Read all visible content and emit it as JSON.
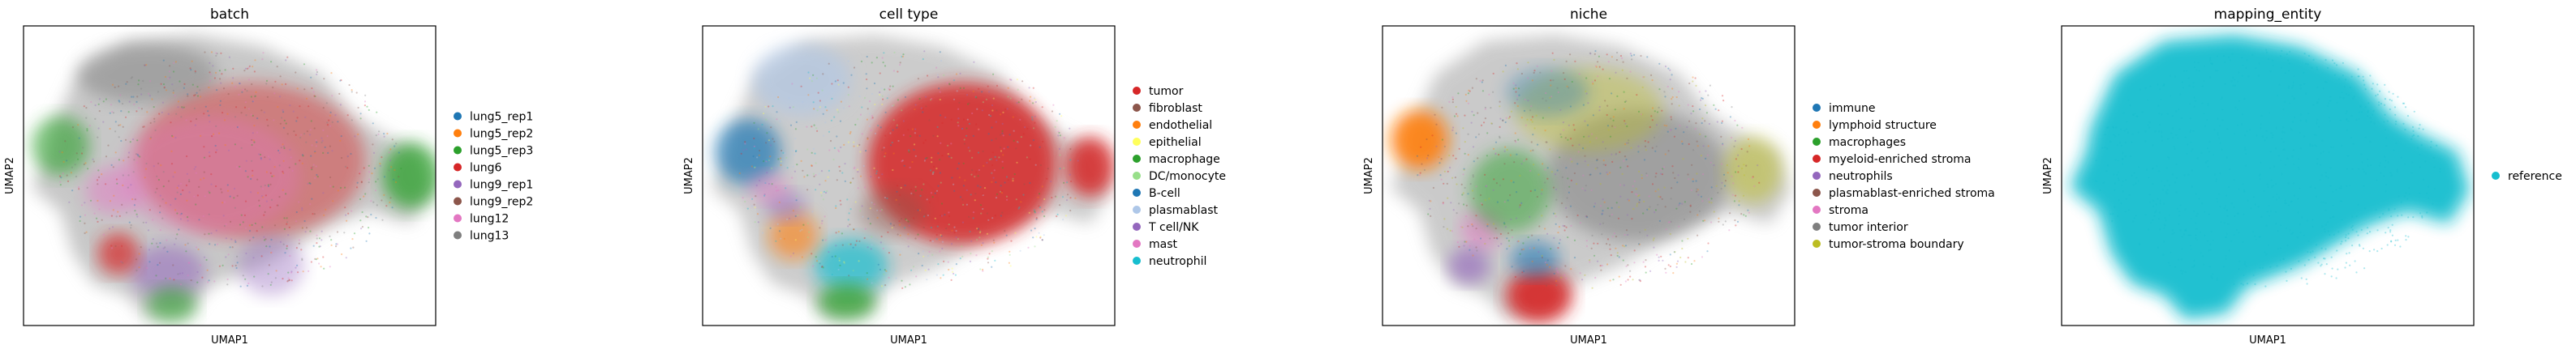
{
  "chart_data": [
    {
      "type": "scatter",
      "title": "batch",
      "xlabel": "UMAP1",
      "ylabel": "UMAP2",
      "grid": false,
      "legend_position": "right",
      "legend": [
        {
          "label": "lung5_rep1",
          "color": "#1f77b4"
        },
        {
          "label": "lung5_rep2",
          "color": "#ff7f0e"
        },
        {
          "label": "lung5_rep3",
          "color": "#2ca02c"
        },
        {
          "label": "lung6",
          "color": "#d62728"
        },
        {
          "label": "lung9_rep1",
          "color": "#9467bd"
        },
        {
          "label": "lung9_rep2",
          "color": "#8c564b"
        },
        {
          "label": "lung12",
          "color": "#e377c2"
        },
        {
          "label": "lung13",
          "color": "#7f7f7f"
        }
      ]
    },
    {
      "type": "scatter",
      "title": "cell type",
      "xlabel": "UMAP1",
      "ylabel": "UMAP2",
      "grid": false,
      "legend_position": "right",
      "legend": [
        {
          "label": "tumor",
          "color": "#d62728"
        },
        {
          "label": "fibroblast",
          "color": "#8c564b"
        },
        {
          "label": "endothelial",
          "color": "#ff7f0e"
        },
        {
          "label": "epithelial",
          "color": "#ffff5c"
        },
        {
          "label": "macrophage",
          "color": "#2ca02c"
        },
        {
          "label": "DC/monocyte",
          "color": "#98df8a"
        },
        {
          "label": "B-cell",
          "color": "#1f77b4"
        },
        {
          "label": "plasmablast",
          "color": "#aec7e8"
        },
        {
          "label": "T cell/NK",
          "color": "#9467bd"
        },
        {
          "label": "mast",
          "color": "#e377c2"
        },
        {
          "label": "neutrophil",
          "color": "#17becf"
        }
      ]
    },
    {
      "type": "scatter",
      "title": "niche",
      "xlabel": "UMAP1",
      "ylabel": "UMAP2",
      "grid": false,
      "legend_position": "right",
      "legend": [
        {
          "label": "immune",
          "color": "#1f77b4"
        },
        {
          "label": "lymphoid structure",
          "color": "#ff7f0e"
        },
        {
          "label": "macrophages",
          "color": "#2ca02c"
        },
        {
          "label": "myeloid-enriched stroma",
          "color": "#d62728"
        },
        {
          "label": "neutrophils",
          "color": "#9467bd"
        },
        {
          "label": "plasmablast-enriched stroma",
          "color": "#8c564b"
        },
        {
          "label": "stroma",
          "color": "#e377c2"
        },
        {
          "label": "tumor interior",
          "color": "#7f7f7f"
        },
        {
          "label": "tumor-stroma boundary",
          "color": "#bcbd22"
        }
      ]
    },
    {
      "type": "scatter",
      "title": "mapping_entity",
      "xlabel": "UMAP1",
      "ylabel": "UMAP2",
      "grid": false,
      "legend_position": "right",
      "legend": [
        {
          "label": "reference",
          "color": "#17becf"
        }
      ]
    }
  ]
}
